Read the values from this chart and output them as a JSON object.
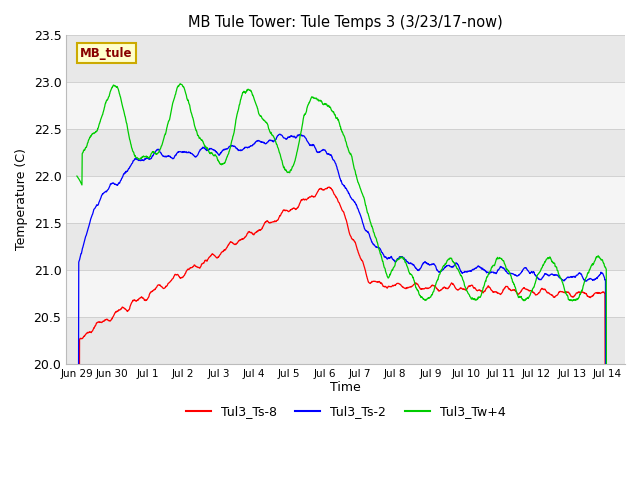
{
  "title": "MB Tule Tower: Tule Temps 3 (3/23/17-now)",
  "xlabel": "Time",
  "ylabel": "Temperature (C)",
  "ylim": [
    20.0,
    23.5
  ],
  "yticks": [
    20.0,
    20.5,
    21.0,
    21.5,
    22.0,
    22.5,
    23.0,
    23.5
  ],
  "background_color": "#ffffff",
  "plot_bg_color": "#ffffff",
  "band_color_light": "#e8e8e8",
  "band_color_dark": "#ffffff",
  "line_red_color": "#ff0000",
  "line_blue_color": "#0000ff",
  "line_green_color": "#00cc00",
  "legend_label": "MB_tule",
  "legend_bg": "#ffffcc",
  "legend_border": "#ccaa00",
  "series_labels": [
    "Tul3_Ts-8",
    "Tul3_Ts-2",
    "Tul3_Tw+4"
  ],
  "series_colors": [
    "#ff0000",
    "#0000ff",
    "#00cc00"
  ],
  "xtick_labels": [
    "Jun 29",
    "Jun 30",
    "Jul 1",
    "Jul 2",
    "Jul 3",
    "Jul 4",
    "Jul 5",
    "Jul 6",
    "Jul 7",
    "Jul 8",
    "Jul 9",
    "Jul 10",
    "Jul 11",
    "Jul 12",
    "Jul 13",
    "Jul 14"
  ],
  "figsize": [
    6.4,
    4.8
  ],
  "dpi": 100
}
